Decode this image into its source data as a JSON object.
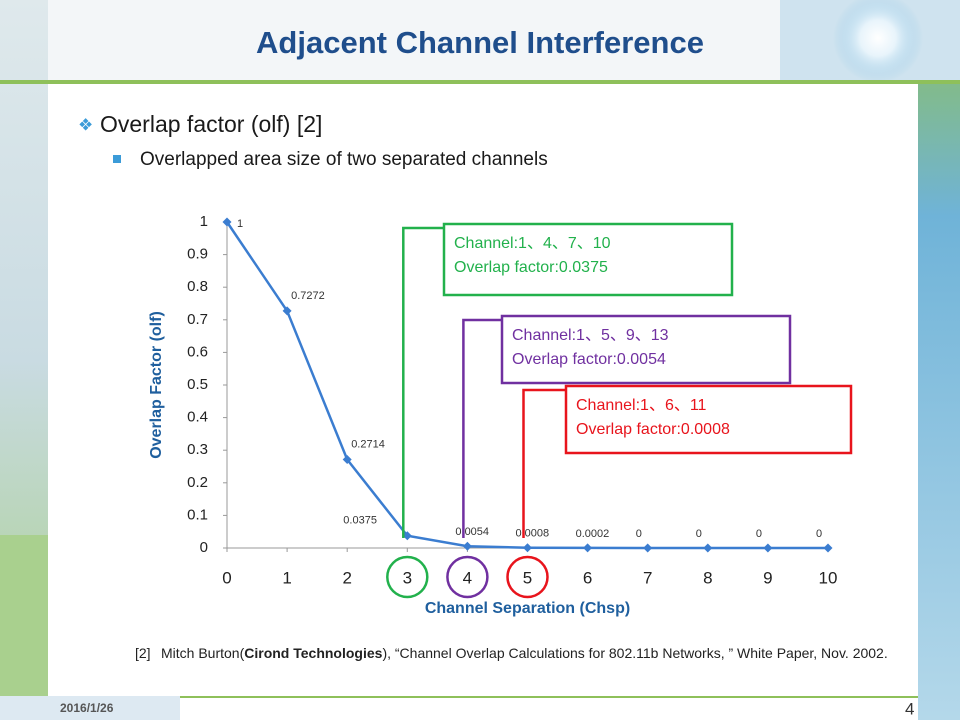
{
  "slide": {
    "title": "Adjacent Channel Interference",
    "bullet": "Overlap factor (olf) [2]",
    "sub_bullet": "Overlapped area size of two separated channels",
    "reference": {
      "tag": "[2]",
      "before": "Mitch Burton(",
      "bold": "Cirond Technologies",
      "after": "), “Channel Overlap Calculations for 802.11b Networks, ” White Paper, Nov. 2002."
    },
    "date": "2016/1/26",
    "page_number": "4"
  },
  "chart_data": {
    "type": "line",
    "x": [
      0,
      1,
      2,
      3,
      4,
      5,
      6,
      7,
      8,
      9,
      10
    ],
    "series": [
      {
        "name": "olf",
        "color": "#3b7dd0",
        "values": [
          1,
          0.7272,
          0.2714,
          0.0375,
          0.0054,
          0.0008,
          0.0002,
          0,
          0,
          0,
          0
        ]
      }
    ],
    "xlim": [
      0,
      10
    ],
    "xticks": [
      0,
      1,
      2,
      3,
      4,
      5,
      6,
      7,
      8,
      9,
      10
    ],
    "ylim": [
      0,
      1
    ],
    "yticks": [
      0,
      0.1,
      0.2,
      0.3,
      0.4,
      0.5,
      0.6,
      0.7,
      0.8,
      0.9,
      1
    ],
    "x_label": "Channel Separation (Chsp)",
    "y_label": "Overlap Factor (olf)",
    "annotations": [
      {
        "x": 3,
        "color": "#22b14c",
        "lines": [
          "Channel:1、4、7、10",
          "Overlap factor:0.0375"
        ]
      },
      {
        "x": 4,
        "color": "#7030a0",
        "lines": [
          "Channel:1、5、9、13",
          "Overlap factor:0.0054"
        ]
      },
      {
        "x": 5,
        "color": "#e8141c",
        "lines": [
          "Channel:1、6、11",
          "Overlap factor:0.0008"
        ]
      }
    ]
  }
}
